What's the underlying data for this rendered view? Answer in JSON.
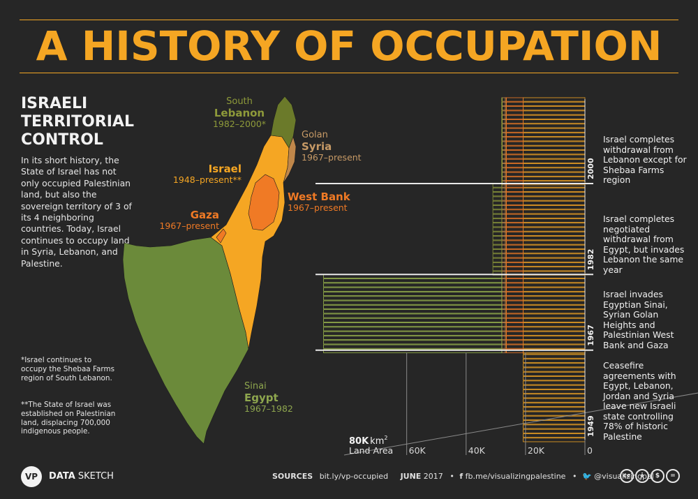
{
  "header": {
    "title": "A HISTORY OF OCCUPATION"
  },
  "left_panel": {
    "subtitle": "ISRAELI TERRITORIAL CONTROL",
    "intro": "In its short history, the State of Israel has not only occupied Palestinian land, but also the sovereign territory of 3 of its 4 neighboring countries. Today, Israel continues to occupy land in Syria, Lebanon, and Palestine.",
    "note1": "*Israel continues to occupy the Shebaa Farms region of South Lebanon.",
    "note2": "**The State of Israel was established on Palestinian land, displacing 700,000 indigenous people."
  },
  "map": {
    "labels": {
      "lebanon": {
        "line1": "South",
        "line2": "Lebanon",
        "years": "1982–2000*"
      },
      "syria": {
        "line1": "Golan",
        "line2": "Syria",
        "years": "1967–present"
      },
      "israel": {
        "line2": "Israel",
        "years": "1948–present**"
      },
      "westbank": {
        "line2": "West Bank",
        "years": "1967–present"
      },
      "gaza": {
        "line2": "Gaza",
        "years": "1967–present"
      },
      "egypt": {
        "line1": "Sinai",
        "line2": "Egypt",
        "years": "1967–1982"
      }
    },
    "colors": {
      "israel": "#f5a623",
      "egypt": "#6b8a3a",
      "lebanon": "#6b7a2a",
      "syria": "#c0874a",
      "westbank": "#f07a25",
      "gaza": "#f07a25"
    }
  },
  "chart_data": {
    "type": "bar",
    "orientation": "horizontal-stacked-timeline",
    "xlabel_value": "80K",
    "xlabel_unit": "km",
    "xlabel_sup": "2",
    "xlabel_text": "Land Area",
    "x_ticks": [
      "60K",
      "40K",
      "20K",
      "0"
    ],
    "xlim": [
      0,
      90000
    ],
    "periods": [
      {
        "year_label": "1949",
        "from": 1949,
        "to": 1967,
        "israel": 20770,
        "westbank": 0,
        "gaza": 0,
        "golan": 0,
        "sinai": 0,
        "lebanon": 0
      },
      {
        "year_label": "1967",
        "from": 1967,
        "to": 1982,
        "israel": 20770,
        "westbank": 5655,
        "gaza": 365,
        "golan": 1200,
        "sinai": 60000,
        "lebanon": 0
      },
      {
        "year_label": "1982",
        "from": 1982,
        "to": 2000,
        "israel": 20770,
        "westbank": 5655,
        "gaza": 365,
        "golan": 1200,
        "sinai": 0,
        "lebanon": 3000
      },
      {
        "year_label": "2000",
        "from": 2000,
        "to": 2017,
        "israel": 20770,
        "westbank": 5655,
        "gaza": 365,
        "golan": 1200,
        "sinai": 0,
        "lebanon": 25
      }
    ],
    "annotations": [
      "Israel completes withdrawal from Lebanon except for Shebaa Farms region",
      "Israel completes negotiated withdrawal from Egypt, but invades Lebanon the same year",
      "Israel invades Egyptian Sinai, Syrian Golan Heights and Palestinian West Bank and Gaza",
      "Ceasefire agreements with Egypt, Lebanon, Jordan and Syria leave new Israeli state controlling 78% of historic Palestine"
    ]
  },
  "footer": {
    "logo": "VP",
    "brand_bold": "DATA",
    "brand_rest": " SKETCH",
    "sources_label": "SOURCES",
    "sources_url": "bit.ly/vp-occupied",
    "date_month": "JUNE",
    "date_year": " 2017",
    "bullet": "•",
    "fb": "fb.me/visualizingpalestine",
    "twitter": "@visualizingpal",
    "cc_icons": [
      "cc",
      "i",
      "$",
      "="
    ]
  }
}
